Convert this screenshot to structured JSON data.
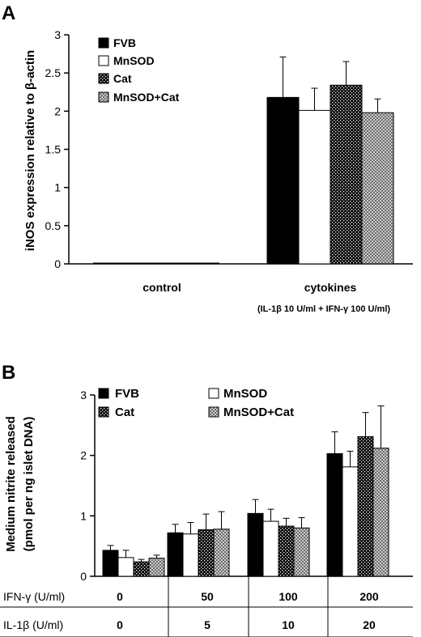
{
  "colors": {
    "fvb": "#000000",
    "mnsod": "#ffffff",
    "cat": "dotted-black",
    "mnsod_cat": "crosshatch-gray"
  },
  "chart_data": [
    {
      "panel": "A",
      "type": "bar",
      "ylabel": "iNOS expression relative to β-actin",
      "ylim": [
        0,
        3
      ],
      "yticks": [
        "0",
        "0.5",
        "1",
        "1.5",
        "2",
        "2.5",
        "3"
      ],
      "categories": [
        "control",
        "cytokines"
      ],
      "subcaption": "(IL-1β 10 U/ml + IFN-γ 100 U/ml)",
      "legend_position": "top-left",
      "grid": false,
      "series": [
        {
          "name": "FVB",
          "values": [
            0,
            2.18
          ],
          "errors": [
            0,
            0.53
          ]
        },
        {
          "name": "MnSOD",
          "values": [
            0,
            2.01
          ],
          "errors": [
            0,
            0.29
          ]
        },
        {
          "name": "Cat",
          "values": [
            0,
            2.34
          ],
          "errors": [
            0,
            0.31
          ]
        },
        {
          "name": "MnSOD+Cat",
          "values": [
            0,
            1.98
          ],
          "errors": [
            0,
            0.18
          ]
        }
      ]
    },
    {
      "panel": "B",
      "type": "bar",
      "ylabel": [
        "Medium nitrite released",
        "(pmol per ng islet DNA)"
      ],
      "ylim": [
        0,
        3
      ],
      "yticks": [
        "0",
        "1",
        "2",
        "3"
      ],
      "row_labels": [
        "IFN-γ (U/ml)",
        "IL-1β (U/ml)"
      ],
      "ifn_values": [
        "0",
        "50",
        "100",
        "200"
      ],
      "il_values": [
        "0",
        "5",
        "10",
        "20"
      ],
      "legend_position": "top",
      "grid": false,
      "series": [
        {
          "name": "FVB",
          "values": [
            0.43,
            0.72,
            1.04,
            2.03
          ],
          "errors": [
            0.08,
            0.14,
            0.23,
            0.36
          ]
        },
        {
          "name": "MnSOD",
          "values": [
            0.31,
            0.7,
            0.91,
            1.81
          ],
          "errors": [
            0.12,
            0.19,
            0.2,
            0.26
          ]
        },
        {
          "name": "Cat",
          "values": [
            0.24,
            0.77,
            0.83,
            2.31
          ],
          "errors": [
            0.04,
            0.26,
            0.13,
            0.4
          ]
        },
        {
          "name": "MnSOD+Cat",
          "values": [
            0.3,
            0.78,
            0.8,
            2.12
          ],
          "errors": [
            0.05,
            0.29,
            0.17,
            0.7
          ]
        }
      ]
    }
  ]
}
